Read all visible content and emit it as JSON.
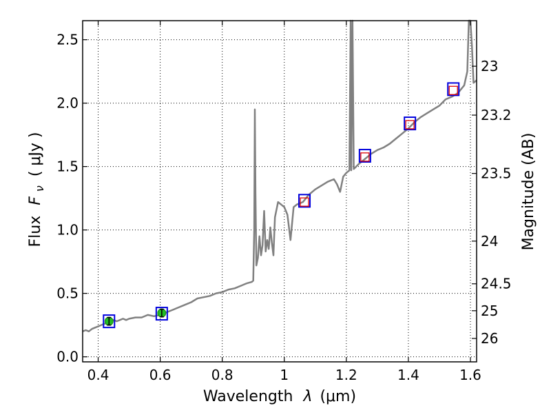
{
  "chart_data": {
    "type": "scatter",
    "xlabel": "Wavelength",
    "xlabel_symbol": "λ",
    "xlabel_unit": "(μm)",
    "ylabel": "Flux",
    "ylabel_symbol": "F",
    "ylabel_symbol_sub": "ν",
    "ylabel_unit": "( μJy )",
    "y2label": "Magnitude (AB)",
    "xlim": [
      0.35,
      1.62
    ],
    "ylim": [
      -0.04,
      2.65
    ],
    "grid": true,
    "x_ticks": [
      {
        "value": 0.4,
        "label": "0.4"
      },
      {
        "value": 0.6,
        "label": "0.6"
      },
      {
        "value": 0.8,
        "label": "0.8"
      },
      {
        "value": 1.0,
        "label": "1"
      },
      {
        "value": 1.2,
        "label": "1.2"
      },
      {
        "value": 1.4,
        "label": "1.4"
      },
      {
        "value": 1.6,
        "label": "1.6"
      }
    ],
    "y_ticks": [
      {
        "value": 0.0,
        "label": "0.0"
      },
      {
        "value": 0.5,
        "label": "0.5"
      },
      {
        "value": 1.0,
        "label": "1.0"
      },
      {
        "value": 1.5,
        "label": "1.5"
      },
      {
        "value": 2.0,
        "label": "2.0"
      },
      {
        "value": 2.5,
        "label": "2.5"
      }
    ],
    "y2_ticks": [
      {
        "magnitude": 23,
        "label": "23"
      },
      {
        "magnitude": 23.2,
        "label": "23.2"
      },
      {
        "magnitude": 23.5,
        "label": "23.5"
      },
      {
        "magnitude": 24,
        "label": "24"
      },
      {
        "magnitude": 24.5,
        "label": "24.5"
      },
      {
        "magnitude": 25,
        "label": "25"
      },
      {
        "magnitude": 26,
        "label": "26"
      }
    ],
    "spectrum": {
      "color": "#808080",
      "points": [
        [
          0.35,
          0.2
        ],
        [
          0.36,
          0.21
        ],
        [
          0.37,
          0.2
        ],
        [
          0.38,
          0.22
        ],
        [
          0.39,
          0.23
        ],
        [
          0.4,
          0.24
        ],
        [
          0.41,
          0.25
        ],
        [
          0.42,
          0.26
        ],
        [
          0.43,
          0.27
        ],
        [
          0.44,
          0.28
        ],
        [
          0.45,
          0.29
        ],
        [
          0.46,
          0.28
        ],
        [
          0.47,
          0.29
        ],
        [
          0.48,
          0.3
        ],
        [
          0.49,
          0.29
        ],
        [
          0.5,
          0.3
        ],
        [
          0.52,
          0.31
        ],
        [
          0.54,
          0.31
        ],
        [
          0.56,
          0.33
        ],
        [
          0.58,
          0.32
        ],
        [
          0.6,
          0.33
        ],
        [
          0.62,
          0.35
        ],
        [
          0.64,
          0.37
        ],
        [
          0.66,
          0.39
        ],
        [
          0.68,
          0.41
        ],
        [
          0.7,
          0.43
        ],
        [
          0.72,
          0.46
        ],
        [
          0.74,
          0.47
        ],
        [
          0.76,
          0.48
        ],
        [
          0.78,
          0.5
        ],
        [
          0.8,
          0.51
        ],
        [
          0.82,
          0.53
        ],
        [
          0.84,
          0.54
        ],
        [
          0.86,
          0.56
        ],
        [
          0.88,
          0.58
        ],
        [
          0.895,
          0.59
        ],
        [
          0.9,
          0.6
        ],
        [
          0.903,
          1.0
        ],
        [
          0.905,
          1.95
        ],
        [
          0.907,
          1.3
        ],
        [
          0.91,
          0.72
        ],
        [
          0.915,
          0.78
        ],
        [
          0.92,
          0.95
        ],
        [
          0.925,
          0.8
        ],
        [
          0.93,
          0.88
        ],
        [
          0.935,
          1.15
        ],
        [
          0.94,
          0.83
        ],
        [
          0.945,
          0.92
        ],
        [
          0.95,
          0.85
        ],
        [
          0.955,
          1.02
        ],
        [
          0.96,
          0.9
        ],
        [
          0.965,
          0.8
        ],
        [
          0.97,
          1.1
        ],
        [
          0.98,
          1.22
        ],
        [
          0.99,
          1.2
        ],
        [
          1.0,
          1.18
        ],
        [
          1.01,
          1.12
        ],
        [
          1.02,
          0.92
        ],
        [
          1.03,
          1.18
        ],
        [
          1.04,
          1.2
        ],
        [
          1.06,
          1.22
        ],
        [
          1.08,
          1.28
        ],
        [
          1.1,
          1.32
        ],
        [
          1.12,
          1.35
        ],
        [
          1.14,
          1.38
        ],
        [
          1.16,
          1.4
        ],
        [
          1.17,
          1.36
        ],
        [
          1.18,
          1.3
        ],
        [
          1.19,
          1.42
        ],
        [
          1.2,
          1.45
        ],
        [
          1.21,
          1.47
        ],
        [
          1.214,
          2.65
        ],
        [
          1.216,
          1.47
        ],
        [
          1.22,
          2.65
        ],
        [
          1.224,
          1.48
        ],
        [
          1.24,
          1.52
        ],
        [
          1.26,
          1.56
        ],
        [
          1.28,
          1.6
        ],
        [
          1.3,
          1.63
        ],
        [
          1.32,
          1.65
        ],
        [
          1.34,
          1.68
        ],
        [
          1.36,
          1.72
        ],
        [
          1.38,
          1.76
        ],
        [
          1.4,
          1.8
        ],
        [
          1.42,
          1.85
        ],
        [
          1.44,
          1.89
        ],
        [
          1.46,
          1.92
        ],
        [
          1.48,
          1.95
        ],
        [
          1.5,
          1.98
        ],
        [
          1.52,
          2.03
        ],
        [
          1.54,
          2.05
        ],
        [
          1.56,
          2.08
        ],
        [
          1.58,
          2.14
        ],
        [
          1.59,
          2.25
        ],
        [
          1.595,
          2.65
        ],
        [
          1.6,
          2.65
        ],
        [
          1.605,
          2.45
        ],
        [
          1.61,
          2.16
        ],
        [
          1.62,
          2.18
        ]
      ]
    },
    "photometry": [
      {
        "x": 0.435,
        "y": 0.28,
        "yerr": 0.03,
        "marker": "green-circle"
      },
      {
        "x": 0.605,
        "y": 0.345,
        "yerr": 0.03,
        "marker": "green-circle"
      }
    ],
    "model_points": [
      {
        "x": 0.435,
        "y": 0.28,
        "marker": "blue-square"
      },
      {
        "x": 0.605,
        "y": 0.34,
        "marker": "blue-square"
      },
      {
        "x": 1.065,
        "y": 1.23,
        "marker": "blue-square"
      },
      {
        "x": 1.26,
        "y": 1.585,
        "marker": "blue-square"
      },
      {
        "x": 1.405,
        "y": 1.84,
        "marker": "blue-square"
      },
      {
        "x": 1.545,
        "y": 2.11,
        "marker": "blue-square"
      }
    ],
    "upper_points": [
      {
        "x": 1.065,
        "y": 1.22,
        "marker": "red-open-square"
      },
      {
        "x": 1.26,
        "y": 1.575,
        "marker": "red-open-square"
      },
      {
        "x": 1.405,
        "y": 1.83,
        "marker": "red-open-square"
      },
      {
        "x": 1.545,
        "y": 2.1,
        "marker": "red-open-square"
      }
    ],
    "colors": {
      "spectrum": "#808080",
      "photometry_fill": "#22bb22",
      "model_edge": "#0000dd",
      "upper_edge": "#dd0000"
    }
  }
}
